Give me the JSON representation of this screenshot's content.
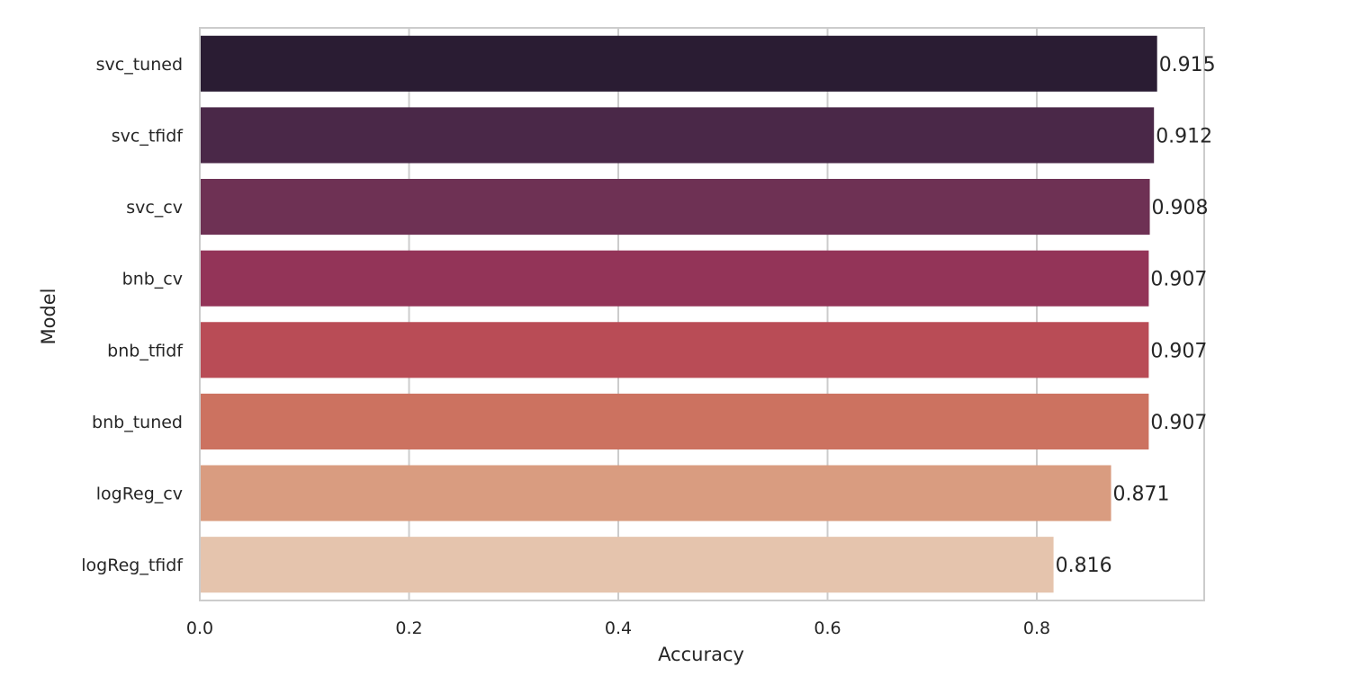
{
  "chart_data": {
    "type": "bar",
    "orientation": "horizontal",
    "title": "",
    "xlabel": "Accuracy",
    "ylabel": "Model",
    "xlim": [
      0,
      0.96
    ],
    "xticks": [
      0.0,
      0.2,
      0.4,
      0.6,
      0.8
    ],
    "xtick_labels": [
      "0.0",
      "0.2",
      "0.4",
      "0.6",
      "0.8"
    ],
    "grid": "vertical",
    "categories": [
      "svc_tuned",
      "svc_tfidf",
      "svc_cv",
      "bnb_cv",
      "bnb_tfidf",
      "bnb_tuned",
      "logReg_cv",
      "logReg_tfidf"
    ],
    "values": [
      0.915,
      0.912,
      0.908,
      0.907,
      0.907,
      0.907,
      0.871,
      0.816
    ],
    "value_labels": [
      "0.915",
      "0.912",
      "0.908",
      "0.907",
      "0.907",
      "0.907",
      "0.871",
      "0.816"
    ],
    "colors": [
      "#2a1c33",
      "#4a2848",
      "#6e3154",
      "#933458",
      "#b94c56",
      "#cc7260",
      "#d99c80",
      "#e5c4ad"
    ]
  }
}
